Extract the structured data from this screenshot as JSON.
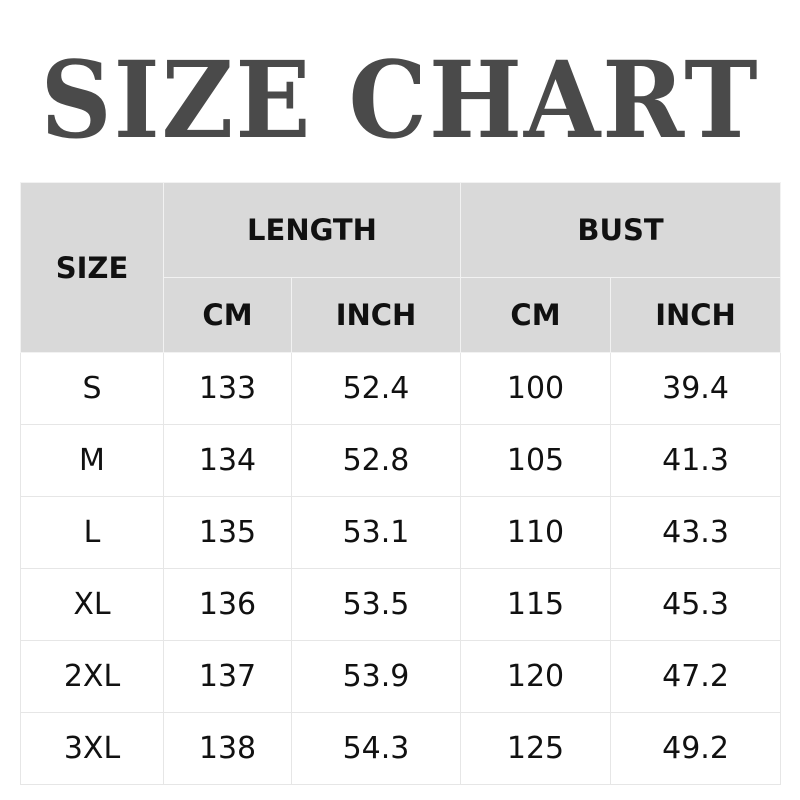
{
  "title": "SIZE CHART",
  "table": {
    "size_header": "SIZE",
    "groups": [
      "LENGTH",
      "BUST"
    ],
    "units": [
      "CM",
      "INCH",
      "CM",
      "INCH"
    ],
    "rows": [
      [
        "S",
        "133",
        "52.4",
        "100",
        "39.4"
      ],
      [
        "M",
        "134",
        "52.8",
        "105",
        "41.3"
      ],
      [
        "L",
        "135",
        "53.1",
        "110",
        "43.3"
      ],
      [
        "XL",
        "136",
        "53.5",
        "115",
        "45.3"
      ],
      [
        "2XL",
        "137",
        "53.9",
        "120",
        "47.2"
      ],
      [
        "3XL",
        "138",
        "54.3",
        "125",
        "49.2"
      ]
    ]
  },
  "colors": {
    "title": "#4a4a4a",
    "header_bg": "#d9d9d9",
    "border": "#555555"
  }
}
